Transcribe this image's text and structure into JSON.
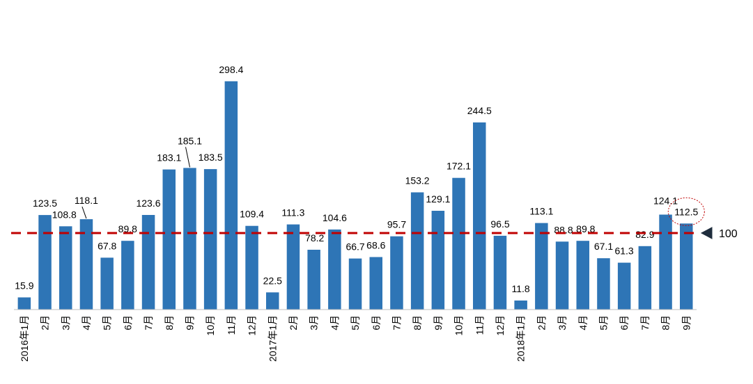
{
  "chart_data": {
    "type": "bar",
    "categories": [
      "2016年1月",
      "2月",
      "3月",
      "4月",
      "5月",
      "6月",
      "7月",
      "8月",
      "9月",
      "10月",
      "11月",
      "12月",
      "2017年1月",
      "2月",
      "3月",
      "4月",
      "5月",
      "6月",
      "7月",
      "8月",
      "9月",
      "10月",
      "11月",
      "12月",
      "2018年1月",
      "2月",
      "3月",
      "4月",
      "5月",
      "6月",
      "7月",
      "8月",
      "9月"
    ],
    "values": [
      15.9,
      123.5,
      108.8,
      118.1,
      67.8,
      89.8,
      123.6,
      183.1,
      185.1,
      183.5,
      298.4,
      109.4,
      22.5,
      111.3,
      78.2,
      104.6,
      66.7,
      68.6,
      95.7,
      153.2,
      129.1,
      172.1,
      244.5,
      96.5,
      11.8,
      113.1,
      88.8,
      89.8,
      67.1,
      61.3,
      82.9,
      124.1,
      112.5
    ],
    "value_labels": [
      "15.9",
      "123.5",
      "108.8",
      "118.1",
      "67.8",
      "89.8",
      "123.6",
      "183.1",
      "185.1",
      "183.5",
      "298.4",
      "109.4",
      "22.5",
      "111.3",
      "78.2",
      "104.6",
      "66.7",
      "68.6",
      "95.7",
      "153.2",
      "129.1",
      "172.1",
      "244.5",
      "96.5",
      "11.8",
      "113.1",
      "88.8",
      "89.8",
      "67.1",
      "61.3",
      "82.9",
      "124.1",
      "112.5"
    ],
    "ylim": [
      0,
      300
    ],
    "reference_line": {
      "value": 100,
      "label": "100",
      "color": "#c00000"
    },
    "highlighted_label_index": 32,
    "bar_color": "#2e75b6",
    "grid": false,
    "title": "",
    "xlabel": "",
    "ylabel": ""
  }
}
